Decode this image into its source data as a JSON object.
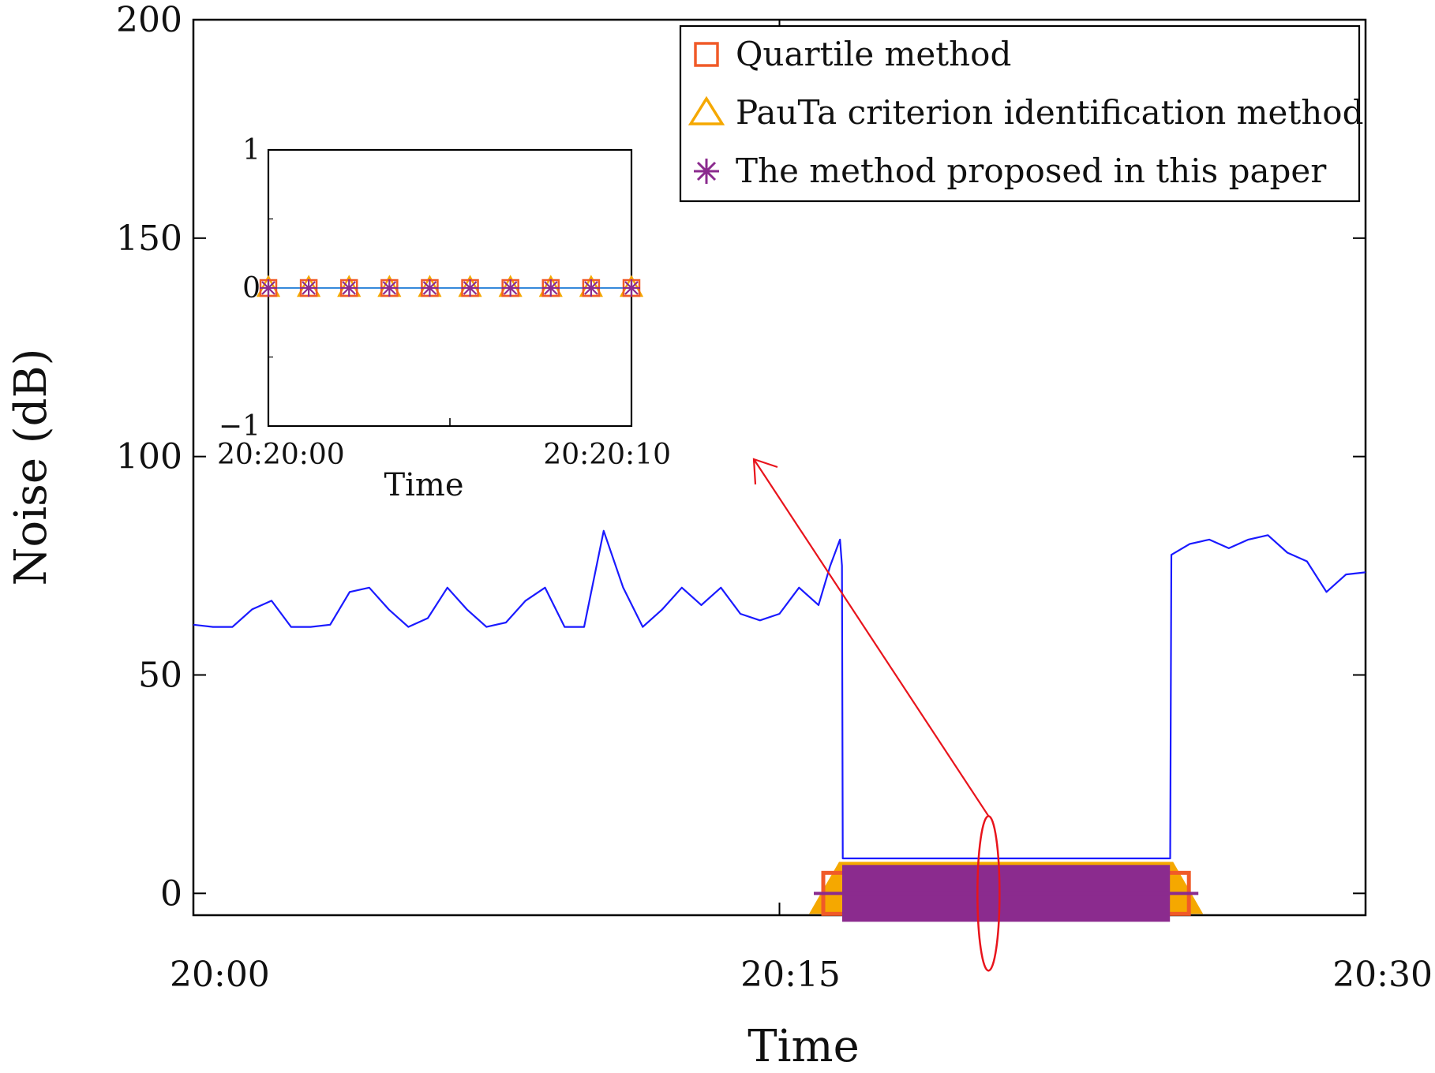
{
  "chart_data": {
    "type": "line",
    "title": "",
    "xlabel": "Time",
    "ylabel": "Noise (dB)",
    "xlim_minutes": [
      0,
      30
    ],
    "ylim": [
      -5,
      200
    ],
    "x_ticks": [
      {
        "value": 0,
        "label": "20:00"
      },
      {
        "value": 15,
        "label": "20:15"
      },
      {
        "value": 30,
        "label": "20:30"
      }
    ],
    "y_ticks": [
      {
        "value": 0,
        "label": "0"
      },
      {
        "value": 50,
        "label": "50"
      },
      {
        "value": 100,
        "label": "100"
      },
      {
        "value": 150,
        "label": "150"
      },
      {
        "value": 200,
        "label": "200"
      }
    ],
    "series": [
      {
        "name": "Noise",
        "color": "#1a1aff",
        "x": [
          0,
          0.5,
          1.0,
          1.5,
          2.0,
          2.5,
          3.0,
          3.5,
          4.0,
          4.5,
          5.0,
          5.5,
          6.0,
          6.5,
          7.0,
          7.5,
          8.0,
          8.5,
          9.0,
          9.5,
          10.0,
          10.5,
          11.0,
          11.5,
          12.0,
          12.5,
          13.0,
          13.5,
          14.0,
          14.5,
          15.0,
          15.5,
          16.0,
          16.3,
          16.55,
          16.6,
          16.62,
          16.65,
          24.96,
          25.0,
          25.03,
          25.5,
          26.0,
          26.5,
          27.0,
          27.5,
          28.0,
          28.5,
          29.0,
          29.5,
          30.0
        ],
        "values": [
          61.5,
          61,
          61,
          65,
          67,
          61,
          61,
          61.5,
          69,
          70,
          65,
          61,
          63,
          70,
          65,
          61,
          62,
          67,
          70,
          61,
          61,
          83,
          70,
          61,
          65,
          70,
          66,
          70,
          64,
          62.5,
          64,
          70,
          66,
          75,
          81,
          75,
          8,
          8,
          8,
          8,
          77.5,
          80,
          81,
          79,
          81,
          82,
          78,
          76,
          69,
          73,
          73.5
        ]
      }
    ],
    "detection": {
      "start_minute": 16.0,
      "end_minute": 25.6,
      "value": 0,
      "quartile_color": "#f05a28",
      "pauta_color": "#f5a800",
      "proposed_color": "#8b2b8e"
    },
    "legend_position": "top-right",
    "legend": [
      {
        "label": "Quartile method",
        "marker": "square",
        "color": "#f05a28"
      },
      {
        "label": "PauTa criterion identification method",
        "marker": "triangle",
        "color": "#f5a800"
      },
      {
        "label": "The method proposed in this paper",
        "marker": "asterisk",
        "color": "#8b2b8e"
      }
    ],
    "annotation": {
      "type": "ellipse-arrow",
      "color": "#e8141c",
      "target": "inset",
      "ellipse_minute": 20.35,
      "ellipse_value": 0
    },
    "inset": {
      "xlabel": "Time",
      "ylim": [
        -1,
        1
      ],
      "y_ticks": [
        {
          "value": -1,
          "label": "−1"
        },
        {
          "value": 0,
          "label": "0"
        },
        {
          "value": 1,
          "label": "1"
        }
      ],
      "x_tick_labels": [
        "20:20:00",
        "20:20:10"
      ],
      "x_seconds": [
        0,
        1,
        2,
        3,
        4,
        5,
        6,
        7,
        8,
        9
      ],
      "values": [
        0,
        0,
        0,
        0,
        0,
        0,
        0,
        0,
        0,
        0
      ],
      "line_color": "#1a78d6"
    }
  }
}
